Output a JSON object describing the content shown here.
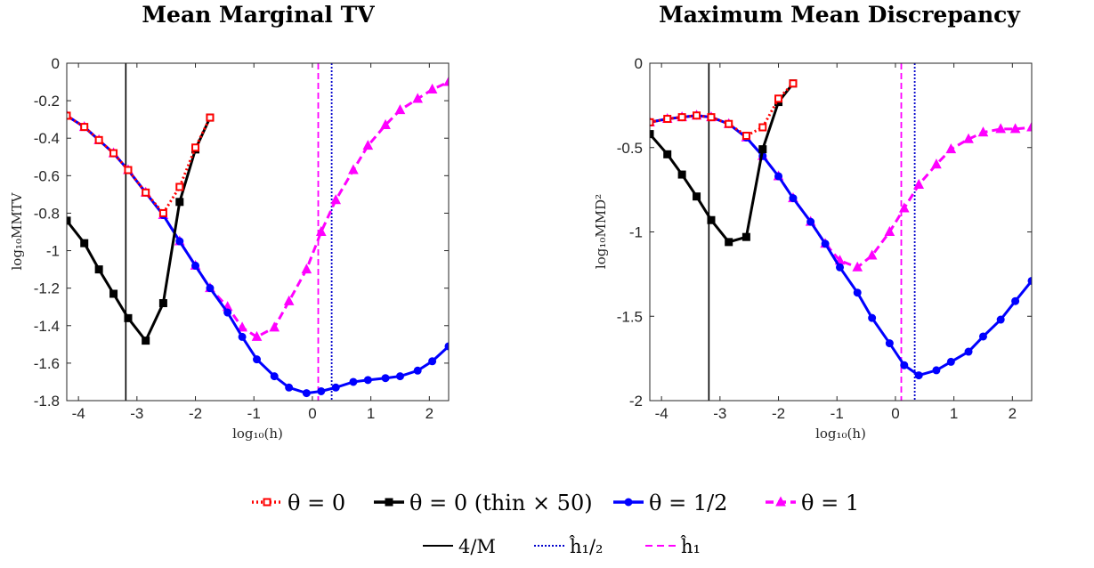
{
  "chart_data": [
    {
      "type": "line",
      "title": "Mean Marginal TV",
      "xlabel": "log₁₀(h)",
      "ylabel": "log₁₀MMTV",
      "xlim": [
        -4.2,
        2.33
      ],
      "ylim": [
        -1.8,
        0
      ],
      "xticks": [
        -4,
        -3,
        -2,
        -1,
        0,
        1,
        2
      ],
      "yticks": [
        0,
        -0.2,
        -0.4,
        -0.6,
        -0.8,
        -1,
        -1.2,
        -1.4,
        -1.6,
        -1.8
      ],
      "ytick_labels": [
        "0",
        "-0.2",
        "-0.4",
        "-0.6",
        "-0.8",
        "-1",
        "-1.2",
        "-1.4",
        "-1.6",
        "-1.8"
      ],
      "grid": false,
      "vlines": [
        {
          "key": "fourM",
          "x": -3.19,
          "color": "#000000",
          "dash": "solid"
        },
        {
          "key": "hhalf",
          "x": 0.33,
          "color": "#0000cc",
          "dash": "dotted"
        },
        {
          "key": "hone",
          "x": 0.1,
          "color": "#ff00ff",
          "dash": "dashed"
        }
      ],
      "series": [
        {
          "key": "theta0",
          "color": "#ff0000",
          "marker": "square-open",
          "dash": "dotted",
          "x": [
            -4.2,
            -3.9,
            -3.65,
            -3.4,
            -3.15,
            -2.85,
            -2.55,
            -2.27,
            -2.0,
            -1.75
          ],
          "y": [
            -0.28,
            -0.34,
            -0.41,
            -0.48,
            -0.57,
            -0.69,
            -0.8,
            -0.66,
            -0.45,
            -0.29
          ]
        },
        {
          "key": "theta0thin",
          "color": "#000000",
          "marker": "square",
          "dash": "solid",
          "x": [
            -4.2,
            -3.9,
            -3.65,
            -3.4,
            -3.15,
            -2.85,
            -2.55,
            -2.27,
            -2.0,
            -1.75
          ],
          "y": [
            -0.84,
            -0.96,
            -1.1,
            -1.23,
            -1.36,
            -1.48,
            -1.28,
            -0.74,
            -0.46,
            -0.29
          ]
        },
        {
          "key": "thetahalf",
          "color": "#0000ff",
          "marker": "circle",
          "dash": "solid",
          "x": [
            -4.2,
            -3.9,
            -3.65,
            -3.4,
            -3.15,
            -2.85,
            -2.55,
            -2.27,
            -2.0,
            -1.75,
            -1.45,
            -1.2,
            -0.95,
            -0.65,
            -0.4,
            -0.1,
            0.15,
            0.4,
            0.7,
            0.95,
            1.25,
            1.5,
            1.8,
            2.05,
            2.33
          ],
          "y": [
            -0.28,
            -0.34,
            -0.41,
            -0.48,
            -0.57,
            -0.69,
            -0.81,
            -0.95,
            -1.08,
            -1.2,
            -1.33,
            -1.46,
            -1.58,
            -1.67,
            -1.73,
            -1.76,
            -1.75,
            -1.73,
            -1.7,
            -1.69,
            -1.68,
            -1.67,
            -1.64,
            -1.59,
            -1.51
          ]
        },
        {
          "key": "theta1",
          "color": "#ff00ff",
          "marker": "triangle",
          "dash": "dashed",
          "x": [
            -4.2,
            -3.9,
            -3.65,
            -3.4,
            -3.15,
            -2.85,
            -2.55,
            -2.27,
            -2.0,
            -1.75,
            -1.45,
            -1.2,
            -0.95,
            -0.65,
            -0.4,
            -0.1,
            0.15,
            0.4,
            0.7,
            0.95,
            1.25,
            1.5,
            1.8,
            2.05,
            2.33
          ],
          "y": [
            -0.28,
            -0.34,
            -0.41,
            -0.48,
            -0.57,
            -0.69,
            -0.81,
            -0.95,
            -1.08,
            -1.2,
            -1.3,
            -1.41,
            -1.46,
            -1.41,
            -1.27,
            -1.1,
            -0.9,
            -0.73,
            -0.57,
            -0.44,
            -0.33,
            -0.25,
            -0.19,
            -0.14,
            -0.1
          ]
        }
      ]
    },
    {
      "type": "line",
      "title": "Maximum Mean Discrepancy",
      "xlabel": "log₁₀(h)",
      "ylabel": "log₁₀MMD²",
      "xlim": [
        -4.2,
        2.33
      ],
      "ylim": [
        -2,
        0
      ],
      "xticks": [
        -4,
        -3,
        -2,
        -1,
        0,
        1,
        2
      ],
      "yticks": [
        0,
        -0.5,
        -1,
        -1.5,
        -2
      ],
      "ytick_labels": [
        "0",
        "-0.5",
        "-1",
        "-1.5",
        "-2"
      ],
      "grid": false,
      "vlines": [
        {
          "key": "fourM",
          "x": -3.19,
          "color": "#000000",
          "dash": "solid"
        },
        {
          "key": "hhalf",
          "x": 0.33,
          "color": "#0000cc",
          "dash": "dotted"
        },
        {
          "key": "hone",
          "x": 0.1,
          "color": "#ff00ff",
          "dash": "dashed"
        }
      ],
      "series": [
        {
          "key": "theta0",
          "color": "#ff0000",
          "marker": "square-open",
          "dash": "dotted",
          "x": [
            -4.2,
            -3.9,
            -3.65,
            -3.4,
            -3.15,
            -2.85,
            -2.55,
            -2.27,
            -2.0,
            -1.75
          ],
          "y": [
            -0.35,
            -0.33,
            -0.32,
            -0.31,
            -0.32,
            -0.36,
            -0.43,
            -0.38,
            -0.21,
            -0.12
          ]
        },
        {
          "key": "theta0thin",
          "color": "#000000",
          "marker": "square",
          "dash": "solid",
          "x": [
            -4.2,
            -3.9,
            -3.65,
            -3.4,
            -3.15,
            -2.85,
            -2.55,
            -2.27,
            -2.0,
            -1.75
          ],
          "y": [
            -0.42,
            -0.54,
            -0.66,
            -0.79,
            -0.93,
            -1.06,
            -1.03,
            -0.51,
            -0.23,
            -0.12
          ]
        },
        {
          "key": "thetahalf",
          "color": "#0000ff",
          "marker": "circle",
          "dash": "solid",
          "x": [
            -4.2,
            -3.9,
            -3.65,
            -3.4,
            -3.15,
            -2.85,
            -2.55,
            -2.27,
            -2.0,
            -1.75,
            -1.45,
            -1.2,
            -0.95,
            -0.65,
            -0.4,
            -0.1,
            0.15,
            0.4,
            0.7,
            0.95,
            1.25,
            1.5,
            1.8,
            2.05,
            2.33
          ],
          "y": [
            -0.35,
            -0.33,
            -0.32,
            -0.31,
            -0.32,
            -0.36,
            -0.44,
            -0.55,
            -0.67,
            -0.8,
            -0.94,
            -1.07,
            -1.21,
            -1.36,
            -1.51,
            -1.66,
            -1.79,
            -1.85,
            -1.82,
            -1.77,
            -1.71,
            -1.62,
            -1.52,
            -1.41,
            -1.29
          ]
        },
        {
          "key": "theta1",
          "color": "#ff00ff",
          "marker": "triangle",
          "dash": "dashed",
          "x": [
            -4.2,
            -3.9,
            -3.65,
            -3.4,
            -3.15,
            -2.85,
            -2.55,
            -2.27,
            -2.0,
            -1.75,
            -1.45,
            -1.2,
            -0.95,
            -0.65,
            -0.4,
            -0.1,
            0.15,
            0.4,
            0.7,
            0.95,
            1.25,
            1.5,
            1.8,
            2.05,
            2.33
          ],
          "y": [
            -0.35,
            -0.33,
            -0.32,
            -0.31,
            -0.32,
            -0.36,
            -0.44,
            -0.55,
            -0.67,
            -0.8,
            -0.94,
            -1.07,
            -1.17,
            -1.21,
            -1.14,
            -1.0,
            -0.86,
            -0.72,
            -0.6,
            -0.51,
            -0.45,
            -0.41,
            -0.39,
            -0.39,
            -0.38
          ]
        }
      ]
    }
  ],
  "legend": {
    "placement": "bottom",
    "row1": [
      {
        "key": "theta0",
        "label": "θ = 0"
      },
      {
        "key": "theta0thin",
        "label": "θ = 0 (thin × 50)"
      },
      {
        "key": "thetahalf",
        "label": "θ = 1/2"
      },
      {
        "key": "theta1",
        "label": "θ = 1"
      }
    ],
    "row2": [
      {
        "key": "fourM",
        "label": "4/M"
      },
      {
        "key": "hhalf",
        "label": "ĥ₁/₂"
      },
      {
        "key": "hone",
        "label": "ĥ₁"
      }
    ]
  }
}
